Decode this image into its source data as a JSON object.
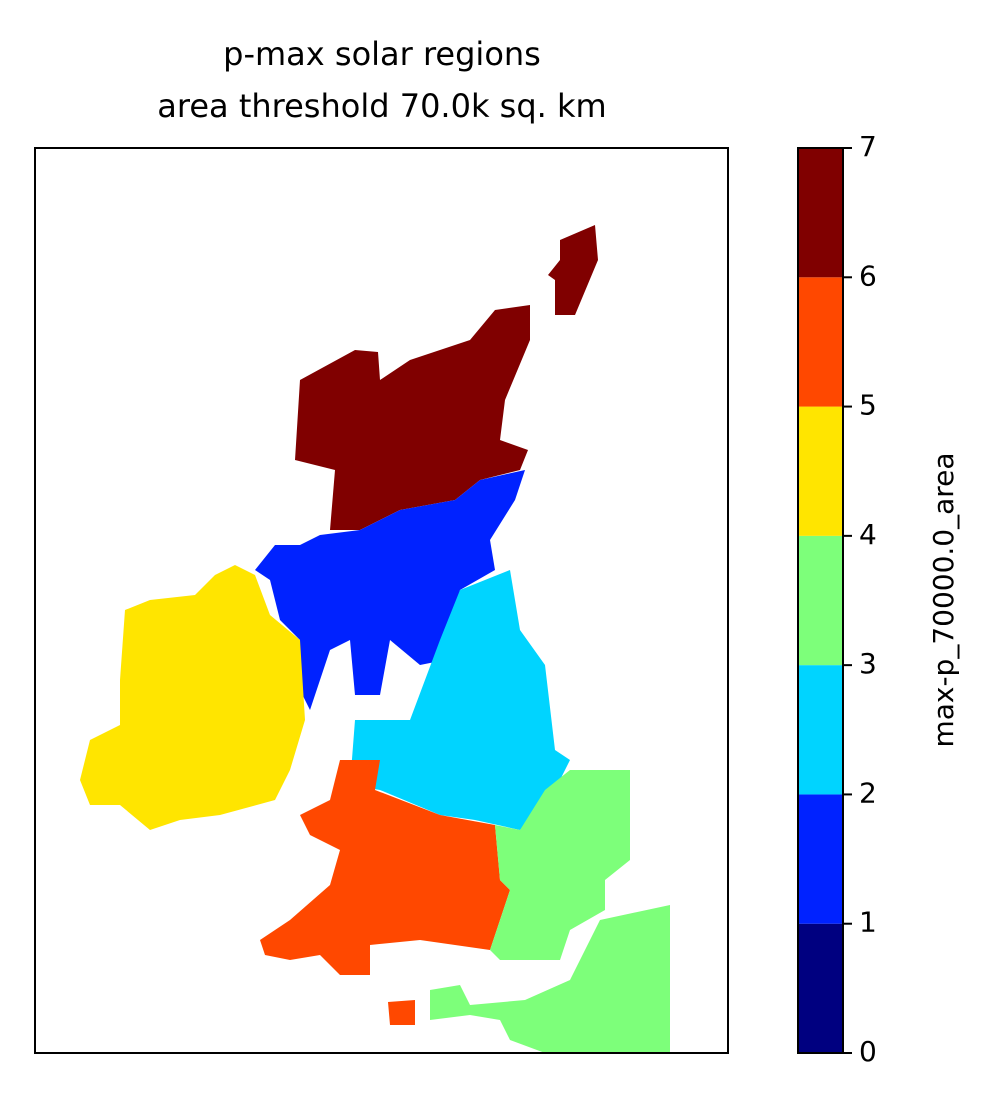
{
  "chart_data": {
    "type": "map",
    "title": [
      "p-max solar regions",
      "area threshold 70.0k sq. km"
    ],
    "colorbar": {
      "label": "max-p_70000.0_area",
      "lim": [
        0,
        7
      ],
      "ticks": [
        0,
        1,
        2,
        3,
        4,
        5,
        6,
        7
      ],
      "colors": [
        "#000080",
        "#0022ff",
        "#00d4ff",
        "#7dff7a",
        "#ffe500",
        "#ff4800",
        "#800000"
      ]
    }
  }
}
